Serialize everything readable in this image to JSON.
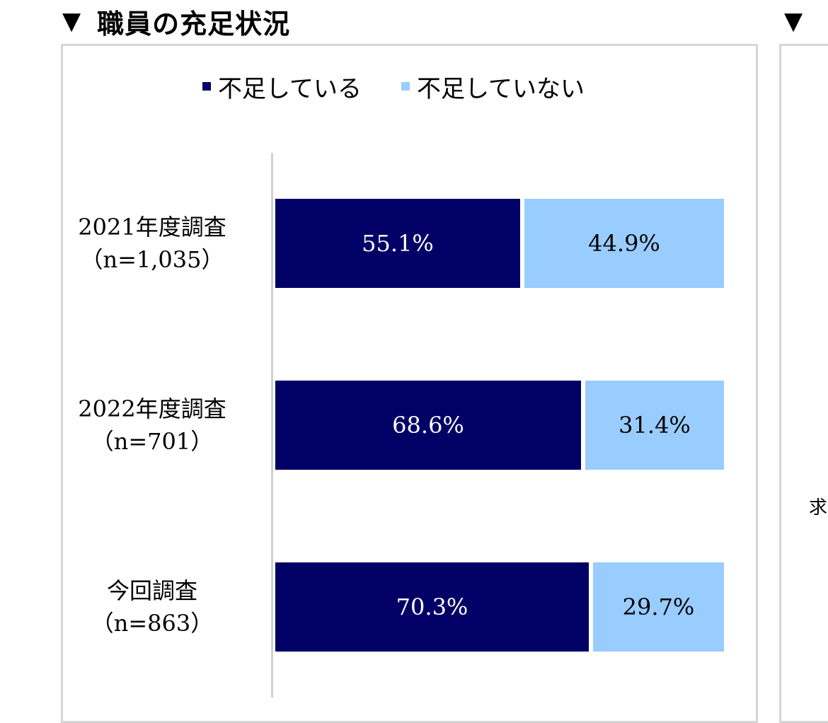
{
  "header": {
    "section_title": "職員の充足状況",
    "title_marker": "▼",
    "second_marker": "▼",
    "clipped_text": "求"
  },
  "chart_data": {
    "type": "bar",
    "orientation": "horizontal",
    "stacked": true,
    "title": "",
    "xlabel": "",
    "ylabel": "",
    "xlim": [
      0,
      100
    ],
    "grid": false,
    "legend_position": "top",
    "categories": [
      {
        "line1": "2021年度調査",
        "line2": "（n=1,035）"
      },
      {
        "line1": "2022年度調査",
        "line2": "（n=701）"
      },
      {
        "line1": "今回調査",
        "line2": "（n=863）"
      }
    ],
    "series": [
      {
        "name": "不足している",
        "color": "#000066",
        "text_color": "#ffffff",
        "values": [
          55.1,
          68.6,
          70.3
        ],
        "labels": [
          "55.1%",
          "68.6%",
          "70.3%"
        ]
      },
      {
        "name": "不足していない",
        "color": "#99ccff",
        "text_color": "#000000",
        "values": [
          44.9,
          31.4,
          29.7
        ],
        "labels": [
          "44.9%",
          "31.4%",
          "29.7%"
        ]
      }
    ]
  }
}
